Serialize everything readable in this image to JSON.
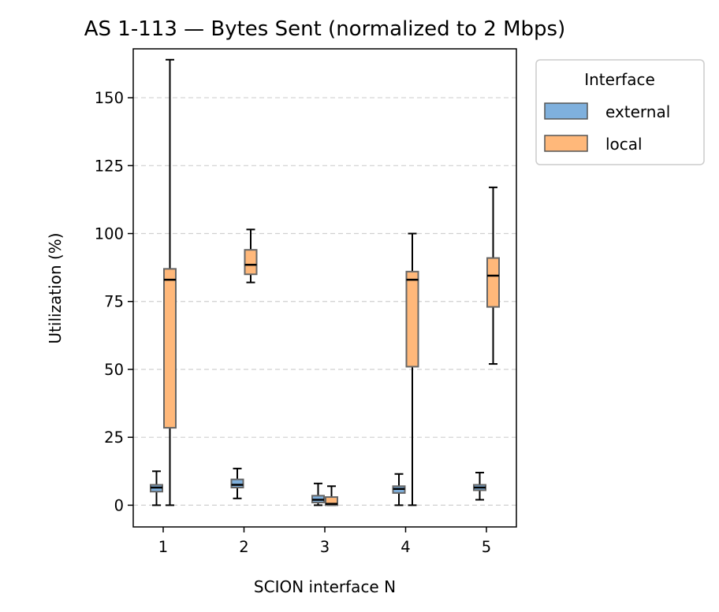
{
  "chart_data": {
    "type": "box",
    "title": "AS 1-113 — Bytes Sent (normalized to 2 Mbps)",
    "xlabel": "SCION interface N",
    "ylabel": "Utilization (%)",
    "categories": [
      "1",
      "2",
      "3",
      "4",
      "5"
    ],
    "yticks": [
      0,
      25,
      50,
      75,
      100,
      125,
      150
    ],
    "ylim": [
      -8,
      168
    ],
    "grid": "horizontal dashed",
    "legend": {
      "title": "Interface",
      "placement": "outside-right"
    },
    "series": [
      {
        "name": "external",
        "color": "#7fb0dd",
        "boxes": [
          {
            "min": 0,
            "q1": 5,
            "median": 6.5,
            "q3": 7.5,
            "max": 12.5
          },
          {
            "min": 2.5,
            "q1": 6.5,
            "median": 7.5,
            "q3": 9.5,
            "max": 13.5
          },
          {
            "min": 0,
            "q1": 1,
            "median": 2,
            "q3": 3.5,
            "max": 8
          },
          {
            "min": 0,
            "q1": 4.5,
            "median": 6,
            "q3": 7,
            "max": 11.5
          },
          {
            "min": 2,
            "q1": 5.5,
            "median": 6.5,
            "q3": 7.5,
            "max": 12
          }
        ]
      },
      {
        "name": "local",
        "color": "#ffb87a",
        "boxes": [
          {
            "min": 0,
            "q1": 28.5,
            "median": 83,
            "q3": 87,
            "max": 164
          },
          {
            "min": 82,
            "q1": 85,
            "median": 88.5,
            "q3": 94,
            "max": 101.5
          },
          {
            "min": 0,
            "q1": 0,
            "median": 0.5,
            "q3": 3,
            "max": 7
          },
          {
            "min": 0,
            "q1": 51,
            "median": 83,
            "q3": 86,
            "max": 100
          },
          {
            "min": 52,
            "q1": 73,
            "median": 84.5,
            "q3": 91,
            "max": 117
          }
        ]
      }
    ]
  }
}
